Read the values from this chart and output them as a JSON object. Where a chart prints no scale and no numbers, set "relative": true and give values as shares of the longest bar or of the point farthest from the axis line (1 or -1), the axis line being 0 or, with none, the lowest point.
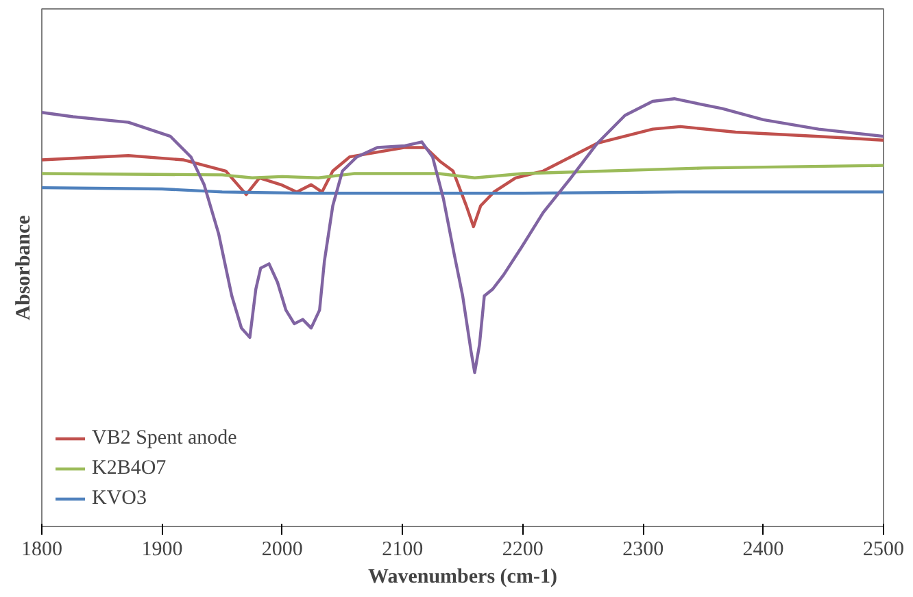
{
  "chart_data": {
    "type": "line",
    "relative": true,
    "xlabel": "Wavenumbers (cm-1)",
    "ylabel": "Absorbance",
    "xlim": [
      1800,
      2500
    ],
    "xticks": [
      1800,
      1900,
      2000,
      2100,
      2200,
      2300,
      2400,
      2500
    ],
    "grid": false,
    "legend": "bottom left",
    "line_style": "solid",
    "marker": "none",
    "series": [
      {
        "name": "VB2 Spent anode",
        "color": "#c0504d",
        "x": [
          1800,
          1872,
          1918,
          1953,
          1970,
          1981,
          1999,
          2012,
          2024,
          2033,
          2042,
          2056,
          2102,
          2119,
          2131,
          2142,
          2153,
          2159,
          2165,
          2176,
          2194,
          2217,
          2262,
          2308,
          2331,
          2377,
          2446,
          2500
        ],
        "values": [
          0.857,
          0.867,
          0.857,
          0.831,
          0.776,
          0.815,
          0.799,
          0.782,
          0.799,
          0.782,
          0.831,
          0.864,
          0.886,
          0.886,
          0.854,
          0.831,
          0.75,
          0.701,
          0.75,
          0.782,
          0.815,
          0.831,
          0.896,
          0.929,
          0.935,
          0.922,
          0.912,
          0.903
        ]
      },
      {
        "name": "K2B4O7",
        "color": "#9bbb59",
        "x": [
          1800,
          1950,
          1975,
          2000,
          2030,
          2060,
          2130,
          2160,
          2200,
          2350,
          2500
        ],
        "values": [
          0.825,
          0.822,
          0.815,
          0.818,
          0.815,
          0.825,
          0.825,
          0.815,
          0.825,
          0.838,
          0.844
        ]
      },
      {
        "name": "KVO3",
        "color": "#4f81bd",
        "x": [
          1800,
          1900,
          1950,
          2020,
          2100,
          2200,
          2330,
          2500
        ],
        "values": [
          0.792,
          0.789,
          0.782,
          0.779,
          0.779,
          0.779,
          0.782,
          0.782
        ]
      },
      {
        "color": "#8064a2",
        "x": [
          1800,
          1826,
          1872,
          1907,
          1924,
          1935,
          1947,
          1958,
          1966,
          1973,
          1978,
          1982,
          1989,
          1996,
          2003,
          2010,
          2017,
          2024,
          2031,
          2035,
          2042,
          2050,
          2062,
          2079,
          2102,
          2116,
          2125,
          2134,
          2143,
          2150,
          2157,
          2160,
          2164,
          2168,
          2175,
          2184,
          2199,
          2217,
          2240,
          2262,
          2285,
          2308,
          2326,
          2343,
          2366,
          2400,
          2446,
          2500
        ],
        "values": [
          0.968,
          0.958,
          0.945,
          0.912,
          0.864,
          0.799,
          0.685,
          0.539,
          0.464,
          0.442,
          0.555,
          0.604,
          0.614,
          0.571,
          0.506,
          0.474,
          0.484,
          0.464,
          0.506,
          0.62,
          0.75,
          0.831,
          0.864,
          0.886,
          0.89,
          0.899,
          0.864,
          0.766,
          0.636,
          0.539,
          0.409,
          0.36,
          0.425,
          0.539,
          0.555,
          0.588,
          0.653,
          0.734,
          0.815,
          0.896,
          0.961,
          0.994,
          1.0,
          0.99,
          0.977,
          0.951,
          0.929,
          0.912
        ]
      }
    ]
  }
}
